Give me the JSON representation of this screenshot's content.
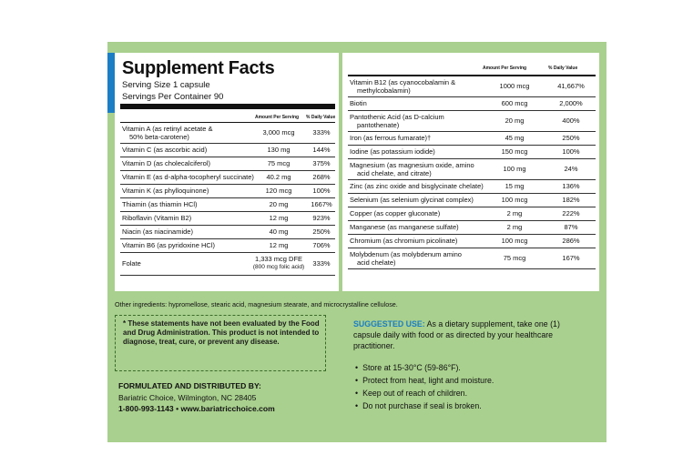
{
  "title": "Supplement Facts",
  "serving_size": "Serving Size 1 capsule",
  "servings_per_container": "Servings Per Container 90",
  "headers": {
    "amount": "Amount Per Serving",
    "dv": "% Daily Value"
  },
  "left_rows": [
    {
      "name": "Vitamin A (as retinyl acetate &",
      "name2": "50% beta-carotene)",
      "amount": "3,000 mcg",
      "dv": "333%"
    },
    {
      "name": "Vitamin C (as ascorbic acid)",
      "amount": "130 mg",
      "dv": "144%"
    },
    {
      "name": "Vitamin D (as cholecalciferol)",
      "amount": "75 mcg",
      "dv": "375%"
    },
    {
      "name": "Vitamin E (as d-alpha-tocopheryl succinate)",
      "amount": "40.2 mg",
      "dv": "268%"
    },
    {
      "name": "Vitamin K (as phylloquinone)",
      "amount": "120 mcg",
      "dv": "100%"
    },
    {
      "name": "Thiamin (as thiamin HCl)",
      "amount": "20 mg",
      "dv": "1667%"
    },
    {
      "name": "Riboflavin (Vitamin B2)",
      "amount": "12 mg",
      "dv": "923%"
    },
    {
      "name": "Niacin (as niacinamide)",
      "amount": "40 mg",
      "dv": "250%"
    },
    {
      "name": "Vitamin B6 (as pyridoxine HCl)",
      "amount": "12 mg",
      "dv": "706%"
    },
    {
      "name": "Folate",
      "amount": "1,333 mcg DFE",
      "amount2": "(800 mcg folic acid)",
      "dv": "333%"
    }
  ],
  "right_rows": [
    {
      "name": "Vitamin B12 (as cyanocobalamin &",
      "name2": "methylcobalamin)",
      "amount": "1000 mcg",
      "dv": "41,667%"
    },
    {
      "name": "Biotin",
      "amount": "600 mcg",
      "dv": "2,000%"
    },
    {
      "name": "Pantothenic Acid (as D-calcium",
      "name2": "pantothenate)",
      "amount": "20 mg",
      "dv": "400%"
    },
    {
      "name": "Iron (as ferrous fumarate)†",
      "amount": "45 mg",
      "dv": "250%"
    },
    {
      "name": "Iodine (as potassium iodide)",
      "amount": "150 mcg",
      "dv": "100%"
    },
    {
      "name": "Magnesium (as magnesium oxide, amino",
      "name2": "acid chelate, and citrate)",
      "amount": "100 mg",
      "dv": "24%"
    },
    {
      "name": "Zinc (as zinc oxide and bisglycinate chelate)",
      "amount": "15 mg",
      "dv": "136%"
    },
    {
      "name": "Selenium (as selenium glycinat complex)",
      "amount": "100 mcg",
      "dv": "182%"
    },
    {
      "name": "Copper (as copper gluconate)",
      "amount": "2 mg",
      "dv": "222%"
    },
    {
      "name": "Manganese (as manganese sulfate)",
      "amount": "2 mg",
      "dv": "87%"
    },
    {
      "name": "Chromium (as chromium picolinate)",
      "amount": "100 mcg",
      "dv": "286%"
    },
    {
      "name": "Molybdenum (as molybdenum amino",
      "name2": "acid chelate)",
      "amount": "75 mcg",
      "dv": "167%"
    }
  ],
  "other_ingredients": "Other ingredients: hypromellose, stearic acid, magnesium stearate, and microcrystalline cellulose.",
  "fda": {
    "l1": "* These statements have not been evaluated by the Food",
    "l2": "and Drug Administration. This product is not intended to",
    "l3": "diagnose, treat, cure, or prevent any disease."
  },
  "formulated": {
    "title": "FORMULATED AND DISTRIBUTED BY:",
    "name": "Bariatric Choice, Wilmington, NC 28405",
    "phone": "1-800-993-1143  •  www.bariatricchoice.com"
  },
  "suggested": {
    "heading": "SUGGESTED USE:",
    "l1": " As a dietary supplement, take one (1)",
    "l2": "capsule daily with food or as directed by your healthcare",
    "l3": "practitioner."
  },
  "bullets": [
    "Store at 15-30°C (59-86°F).",
    "Protect from heat, light and moisture.",
    "Keep out of reach of children.",
    "Do not purchase if seal is broken."
  ],
  "colors": {
    "label_green": "#a9d08e",
    "accent_blue": "#1c7ec4"
  }
}
